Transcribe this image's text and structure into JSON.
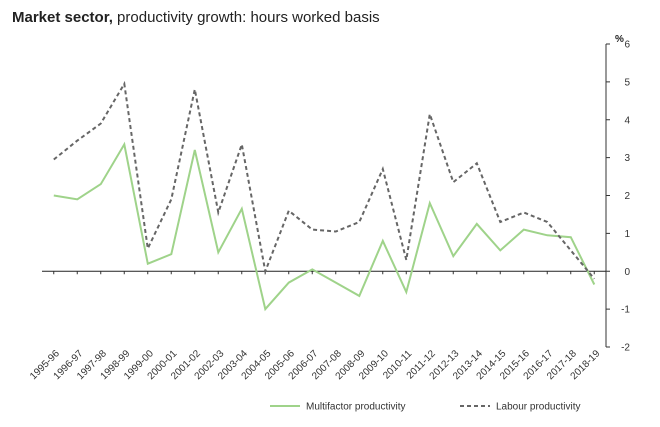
{
  "chart_data": {
    "type": "line",
    "title_bold": "Market sector,",
    "title_rest": " productivity growth: hours worked basis",
    "unit_label": "%",
    "xlabel": "",
    "ylabel": "",
    "ylim": [
      -2,
      6
    ],
    "yticks": [
      -2,
      -1,
      0,
      1,
      2,
      3,
      4,
      5,
      6
    ],
    "grid": false,
    "legend_position": "bottom",
    "categories": [
      "1995-96",
      "1996-97",
      "1997-98",
      "1998-99",
      "1999-00",
      "2000-01",
      "2001-02",
      "2002-03",
      "2003-04",
      "2004-05",
      "2005-06",
      "2006-07",
      "2007-08",
      "2008-09",
      "2009-10",
      "2010-11",
      "2011-12",
      "2012-13",
      "2013-14",
      "2014-15",
      "2015-16",
      "2016-17",
      "2017-18",
      "2018-19"
    ],
    "series": [
      {
        "name": "Multifactor productivity",
        "color": "#9fd38a",
        "dash": "solid",
        "values": [
          2.0,
          1.9,
          2.3,
          3.35,
          0.2,
          0.45,
          3.2,
          0.5,
          1.65,
          -1.0,
          -0.3,
          0.05,
          -0.3,
          -0.65,
          0.8,
          -0.55,
          1.8,
          0.4,
          1.25,
          0.55,
          1.1,
          0.95,
          0.9,
          -0.35
        ]
      },
      {
        "name": "Labour productivity",
        "color": "#666666",
        "dash": "dashed",
        "values": [
          2.95,
          3.45,
          3.9,
          4.95,
          0.6,
          1.9,
          4.8,
          1.55,
          3.35,
          0.0,
          1.6,
          1.1,
          1.05,
          1.3,
          2.7,
          0.3,
          4.15,
          2.35,
          2.85,
          1.3,
          1.55,
          1.3,
          0.55,
          -0.2
        ]
      }
    ]
  }
}
